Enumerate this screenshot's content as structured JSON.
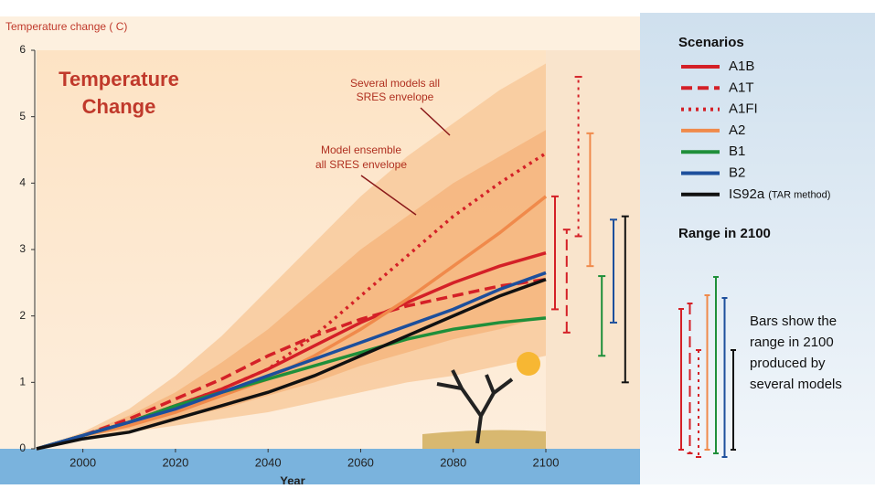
{
  "chart_data": {
    "type": "line",
    "title": "Temperature change ( C)",
    "heading": [
      "Temperature",
      "Change"
    ],
    "xlabel": "Year",
    "x": [
      1990,
      2000,
      2010,
      2020,
      2030,
      2040,
      2050,
      2060,
      2070,
      2080,
      2090,
      2100
    ],
    "xlim": [
      1990,
      2100
    ],
    "xticks": [
      2000,
      2020,
      2040,
      2060,
      2080,
      2100
    ],
    "ylim": [
      0,
      6
    ],
    "yticks": [
      0,
      1,
      2,
      3,
      4,
      5,
      6
    ],
    "bands": [
      {
        "color": "#f8c898",
        "upper": [
          0,
          0.25,
          0.6,
          1.1,
          1.7,
          2.4,
          3.1,
          3.8,
          4.4,
          4.9,
          5.4,
          5.8
        ],
        "lower": [
          0,
          0.15,
          0.25,
          0.35,
          0.45,
          0.55,
          0.7,
          0.85,
          1.0,
          1.1,
          1.25,
          1.4
        ]
      },
      {
        "color": "#f5b47c",
        "upper": [
          0,
          0.22,
          0.5,
          0.85,
          1.3,
          1.8,
          2.4,
          3.0,
          3.5,
          4.0,
          4.4,
          4.8
        ],
        "lower": [
          0,
          0.18,
          0.3,
          0.45,
          0.6,
          0.8,
          1.0,
          1.25,
          1.45,
          1.65,
          1.8,
          2.0
        ]
      }
    ],
    "annotations": [
      {
        "lines": [
          "Several models all",
          "SRES envelope"
        ]
      },
      {
        "lines": [
          "Model ensemble",
          "all SRES envelope"
        ]
      }
    ],
    "legend_title": "Scenarios",
    "series": [
      {
        "name": "A1B",
        "color": "#d42027",
        "dash": "solid",
        "values": [
          0,
          0.2,
          0.4,
          0.65,
          0.9,
          1.2,
          1.55,
          1.9,
          2.2,
          2.5,
          2.75,
          2.95
        ],
        "range": [
          2.1,
          3.8
        ]
      },
      {
        "name": "A1T",
        "color": "#d42027",
        "dash": "dashed",
        "values": [
          0,
          0.2,
          0.45,
          0.75,
          1.05,
          1.4,
          1.7,
          1.95,
          2.15,
          2.3,
          2.45,
          2.55
        ],
        "range": [
          1.75,
          3.3
        ]
      },
      {
        "name": "A1FI",
        "color": "#d42027",
        "dash": "dotted",
        "values": [
          0,
          0.2,
          0.4,
          0.65,
          0.9,
          1.2,
          1.7,
          2.3,
          2.9,
          3.5,
          4.0,
          4.45
        ],
        "range": [
          3.2,
          5.6
        ]
      },
      {
        "name": "A2",
        "color": "#f08a4b",
        "dash": "solid",
        "values": [
          0,
          0.2,
          0.35,
          0.55,
          0.8,
          1.05,
          1.4,
          1.8,
          2.25,
          2.75,
          3.25,
          3.8
        ],
        "range": [
          2.75,
          4.75
        ]
      },
      {
        "name": "B1",
        "color": "#1f8f3a",
        "dash": "solid",
        "values": [
          0,
          0.2,
          0.4,
          0.65,
          0.85,
          1.05,
          1.25,
          1.45,
          1.65,
          1.8,
          1.9,
          1.97
        ],
        "range": [
          1.4,
          2.6
        ]
      },
      {
        "name": "B2",
        "color": "#1d4f9c",
        "dash": "solid",
        "values": [
          0,
          0.2,
          0.4,
          0.6,
          0.85,
          1.1,
          1.35,
          1.6,
          1.85,
          2.1,
          2.4,
          2.65
        ],
        "range": [
          1.9,
          3.45
        ]
      },
      {
        "name": "IS92a",
        "name_note": "(TAR method)",
        "color": "#111111",
        "dash": "solid",
        "values": [
          0,
          0.15,
          0.25,
          0.45,
          0.65,
          0.85,
          1.1,
          1.4,
          1.7,
          2.0,
          2.3,
          2.55
        ],
        "range": [
          1.0,
          3.5
        ]
      }
    ],
    "range_title": "Range in 2100",
    "range_note": [
      "Bars show the",
      "range in 2100",
      "produced by",
      "several models"
    ]
  }
}
